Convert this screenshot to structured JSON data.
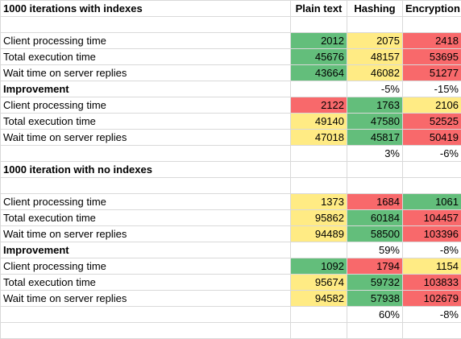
{
  "columns": [
    "Plain text",
    "Hashing",
    "Encryption"
  ],
  "rows": [
    {
      "type": "header",
      "label": "1000 iterations with indexes"
    },
    {
      "type": "blank"
    },
    {
      "type": "data",
      "label": "Client processing time",
      "values": [
        "2012",
        "2075",
        "2418"
      ],
      "colors": [
        "#63be7b",
        "#ffeb84",
        "#f8696b"
      ]
    },
    {
      "type": "data",
      "label": "Total execution time",
      "values": [
        "45676",
        "48157",
        "53695"
      ],
      "colors": [
        "#63be7b",
        "#ffeb84",
        "#f8696b"
      ]
    },
    {
      "type": "data",
      "label": "Wait time on server replies",
      "values": [
        "43664",
        "46082",
        "51277"
      ],
      "colors": [
        "#63be7b",
        "#ffeb84",
        "#f8696b"
      ]
    },
    {
      "type": "section",
      "label": "Improvement",
      "values": [
        "",
        "-5%",
        "-15%"
      ]
    },
    {
      "type": "data",
      "label": "Client processing time",
      "values": [
        "2122",
        "1763",
        "2106"
      ],
      "colors": [
        "#f8696b",
        "#63be7b",
        "#ffeb84"
      ]
    },
    {
      "type": "data",
      "label": "Total execution time",
      "values": [
        "49140",
        "47580",
        "52525"
      ],
      "colors": [
        "#ffeb84",
        "#63be7b",
        "#f8696b"
      ]
    },
    {
      "type": "data",
      "label": "Wait time on server replies",
      "values": [
        "47018",
        "45817",
        "50419"
      ],
      "colors": [
        "#ffeb84",
        "#63be7b",
        "#f8696b"
      ]
    },
    {
      "type": "values",
      "values": [
        "",
        "3%",
        "-6%"
      ]
    },
    {
      "type": "heading",
      "label": "1000 iteration with no indexes"
    },
    {
      "type": "blank"
    },
    {
      "type": "data",
      "label": "Client processing time",
      "values": [
        "1373",
        "1684",
        "1061"
      ],
      "colors": [
        "#ffeb84",
        "#f8696b",
        "#63be7b"
      ]
    },
    {
      "type": "data",
      "label": "Total execution time",
      "values": [
        "95862",
        "60184",
        "104457"
      ],
      "colors": [
        "#ffeb84",
        "#63be7b",
        "#f8696b"
      ]
    },
    {
      "type": "data",
      "label": "Wait time on server replies",
      "values": [
        "94489",
        "58500",
        "103396"
      ],
      "colors": [
        "#ffeb84",
        "#63be7b",
        "#f8696b"
      ]
    },
    {
      "type": "section",
      "label": "Improvement",
      "values": [
        "",
        "59%",
        "-8%"
      ]
    },
    {
      "type": "data",
      "label": "Client processing time",
      "values": [
        "1092",
        "1794",
        "1154"
      ],
      "colors": [
        "#63be7b",
        "#f8696b",
        "#ffeb84"
      ]
    },
    {
      "type": "data",
      "label": "Total execution time",
      "values": [
        "95674",
        "59732",
        "103833"
      ],
      "colors": [
        "#ffeb84",
        "#63be7b",
        "#f8696b"
      ]
    },
    {
      "type": "data",
      "label": "Wait time on server replies",
      "values": [
        "94582",
        "57938",
        "102679"
      ],
      "colors": [
        "#ffeb84",
        "#63be7b",
        "#f8696b"
      ]
    },
    {
      "type": "values",
      "values": [
        "",
        "60%",
        "-8%"
      ]
    },
    {
      "type": "blank"
    }
  ]
}
